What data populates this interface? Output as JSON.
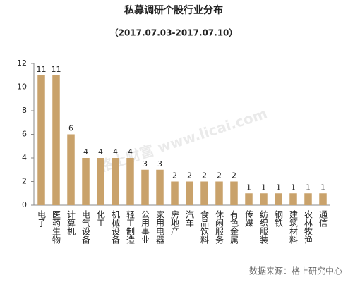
{
  "chart_data": {
    "type": "bar",
    "title": "私募调研个股行业分布",
    "subtitle": "（2017.07.03-2017.07.10）",
    "categories": [
      "电子",
      "医药生物",
      "计算机",
      "电气设备",
      "化工",
      "机械设备",
      "轻工制造",
      "公用事业",
      "家用电器",
      "房地产",
      "汽车",
      "食品饮料",
      "休闲服务",
      "有色金属",
      "传媒",
      "纺织服装",
      "钢铁",
      "建筑材料",
      "农林牧渔",
      "通信"
    ],
    "values": [
      11,
      11,
      6,
      4,
      4,
      4,
      4,
      3,
      3,
      2,
      2,
      2,
      2,
      2,
      1,
      1,
      1,
      1,
      1,
      1
    ],
    "color": "#c9a26b",
    "ylim": [
      0,
      12
    ],
    "yticks": [
      0,
      2,
      4,
      6,
      8,
      10,
      12
    ],
    "grid": false,
    "watermark": "格上财富 www.licai.com",
    "source": "数据来源：格上研究中心"
  }
}
